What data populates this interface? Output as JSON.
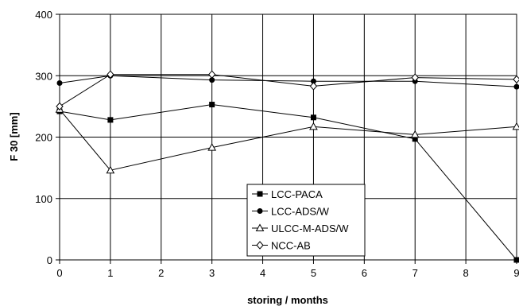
{
  "chart_data": {
    "type": "line",
    "title": "",
    "xlabel": "storing / months",
    "ylabel": "F 30 [mm]",
    "xlim": [
      0,
      9
    ],
    "ylim": [
      0,
      400
    ],
    "x_ticks": [
      0,
      1,
      2,
      3,
      4,
      5,
      6,
      7,
      8,
      9
    ],
    "y_ticks": [
      0,
      100,
      200,
      300,
      400
    ],
    "grid": true,
    "legend_position": "bottom-center",
    "x": [
      0,
      1,
      3,
      5,
      7,
      9
    ],
    "series": [
      {
        "name": "LCC-PACA",
        "marker": "filled-square",
        "values": [
          242,
          228,
          253,
          232,
          197,
          0
        ]
      },
      {
        "name": "LCC-ADS/W",
        "marker": "filled-circle",
        "values": [
          288,
          300,
          293,
          291,
          291,
          282
        ]
      },
      {
        "name": "ULCC-M-ADS/W",
        "marker": "open-triangle",
        "values": [
          245,
          146,
          183,
          217,
          204,
          217
        ]
      },
      {
        "name": "NCC-AB",
        "marker": "open-diamond",
        "values": [
          250,
          302,
          302,
          283,
          297,
          294
        ]
      }
    ]
  }
}
